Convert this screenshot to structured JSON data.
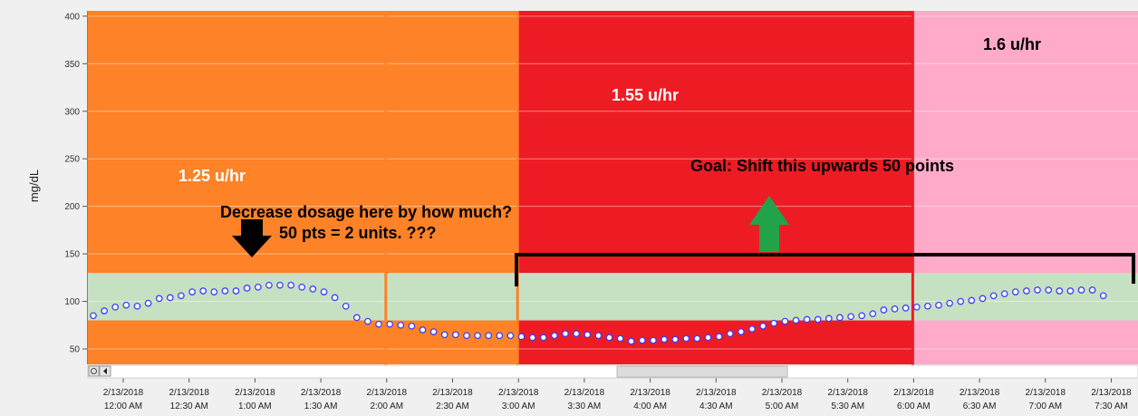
{
  "chart_data": {
    "type": "scatter",
    "title": "",
    "xlabel": "",
    "ylabel": "mg/dL",
    "ylim": [
      40,
      405
    ],
    "y_ticks": [
      50,
      100,
      150,
      200,
      250,
      300,
      350,
      400
    ],
    "x_tick_labels": [
      {
        "date": "2/13/2018",
        "time": "12:00 AM"
      },
      {
        "date": "2/13/2018",
        "time": "12:30 AM"
      },
      {
        "date": "2/13/2018",
        "time": "1:00 AM"
      },
      {
        "date": "2/13/2018",
        "time": "1:30 AM"
      },
      {
        "date": "2/13/2018",
        "time": "2:00 AM"
      },
      {
        "date": "2/13/2018",
        "time": "2:30 AM"
      },
      {
        "date": "2/13/2018",
        "time": "3:00 AM"
      },
      {
        "date": "2/13/2018",
        "time": "3:30 AM"
      },
      {
        "date": "2/13/2018",
        "time": "4:00 AM"
      },
      {
        "date": "2/13/2018",
        "time": "4:30 AM"
      },
      {
        "date": "2/13/2018",
        "time": "5:00 AM"
      },
      {
        "date": "2/13/2018",
        "time": "5:30 AM"
      },
      {
        "date": "2/13/2018",
        "time": "6:00 AM"
      },
      {
        "date": "2/13/2018",
        "time": "6:30 AM"
      },
      {
        "date": "2/13/2018",
        "time": "7:00 AM"
      },
      {
        "date": "2/13/2018",
        "time": "7:30 AM"
      }
    ],
    "basal_segments": [
      {
        "start": "12:00 AM",
        "end": "3:00 AM",
        "color": "#fd8228",
        "label": "1.25 u/hr"
      },
      {
        "start": "3:00 AM",
        "end": "6:00 AM",
        "color": "#ed1c24",
        "label": "1.55 u/hr"
      },
      {
        "start": "6:00 AM",
        "end": "7:40 AM",
        "color": "#ffaac9",
        "label": "1.6 u/hr"
      }
    ],
    "target_range": {
      "low": 80,
      "high": 130,
      "color": "#c6e0c2"
    },
    "series": [
      {
        "points_per_half_hour": 6,
        "values": [
          85,
          90,
          94,
          96,
          95,
          98,
          103,
          104,
          106,
          110,
          111,
          110,
          111,
          111,
          114,
          115,
          117,
          117,
          117,
          115,
          113,
          110,
          104,
          95,
          83,
          79,
          76,
          76,
          75,
          74,
          70,
          68,
          65,
          65,
          64,
          64,
          64,
          64,
          64,
          63,
          62,
          62,
          64,
          66,
          66,
          65,
          64,
          62,
          61,
          58,
          59,
          59,
          60,
          60,
          61,
          61,
          62,
          63,
          66,
          68,
          71,
          74,
          77,
          79,
          80,
          81,
          81,
          82,
          83,
          84,
          85,
          87,
          91,
          92,
          93,
          94,
          95,
          96,
          98,
          100,
          101,
          103,
          106,
          108,
          110,
          111,
          112,
          112,
          111,
          111,
          112,
          112,
          106
        ]
      }
    ],
    "annotations": {
      "basal_1": "1.25 u/hr",
      "basal_2": "1.55 u/hr",
      "basal_3": "1.6 u/hr",
      "decrease_line1": "Decrease dosage here by how much?",
      "decrease_line2": "50 pts = 2 units. ???",
      "goal": "Goal: Shift this upwards 50 points"
    },
    "grid": true
  },
  "colors": {
    "dot_fill": "#ffffff",
    "dot_stroke": "#3c3cff",
    "down_arrow": "#000000",
    "up_arrow": "#22a34a",
    "bracket": "#000000"
  }
}
